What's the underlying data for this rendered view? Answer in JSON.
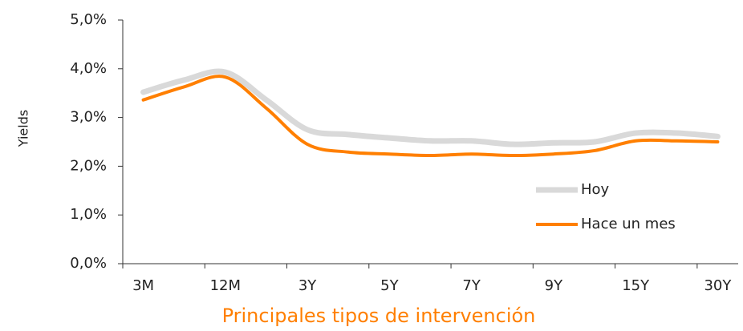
{
  "chart_data": {
    "type": "line",
    "categories": [
      "3M",
      null,
      "12M",
      null,
      "3Y",
      null,
      "5Y",
      null,
      "7Y",
      null,
      "9Y",
      null,
      "15Y",
      null,
      "30Y"
    ],
    "series": [
      {
        "name": "Hoy",
        "color": "#d9d9d9",
        "values": [
          3.52,
          3.77,
          3.93,
          3.36,
          2.75,
          2.65,
          2.58,
          2.52,
          2.52,
          2.45,
          2.48,
          2.5,
          2.68,
          2.68,
          2.61
        ]
      },
      {
        "name": "Hace un mes",
        "color": "#ff7f00",
        "values": [
          3.36,
          3.63,
          3.83,
          3.19,
          2.45,
          2.29,
          2.25,
          2.22,
          2.25,
          2.22,
          2.25,
          2.32,
          2.52,
          2.52,
          2.5
        ]
      }
    ],
    "y_label": "Yields",
    "x_label": "Principales tipos de intervención",
    "ylim": [
      0,
      5
    ],
    "yticks": [
      {
        "value": 0,
        "label": "0,0%"
      },
      {
        "value": 1,
        "label": "1,0%"
      },
      {
        "value": 2,
        "label": "2,0%"
      },
      {
        "value": 3,
        "label": "3,0%"
      },
      {
        "value": 4,
        "label": "4,0%"
      },
      {
        "value": 5,
        "label": "5,0%"
      }
    ],
    "grid": false,
    "legend": "right"
  }
}
